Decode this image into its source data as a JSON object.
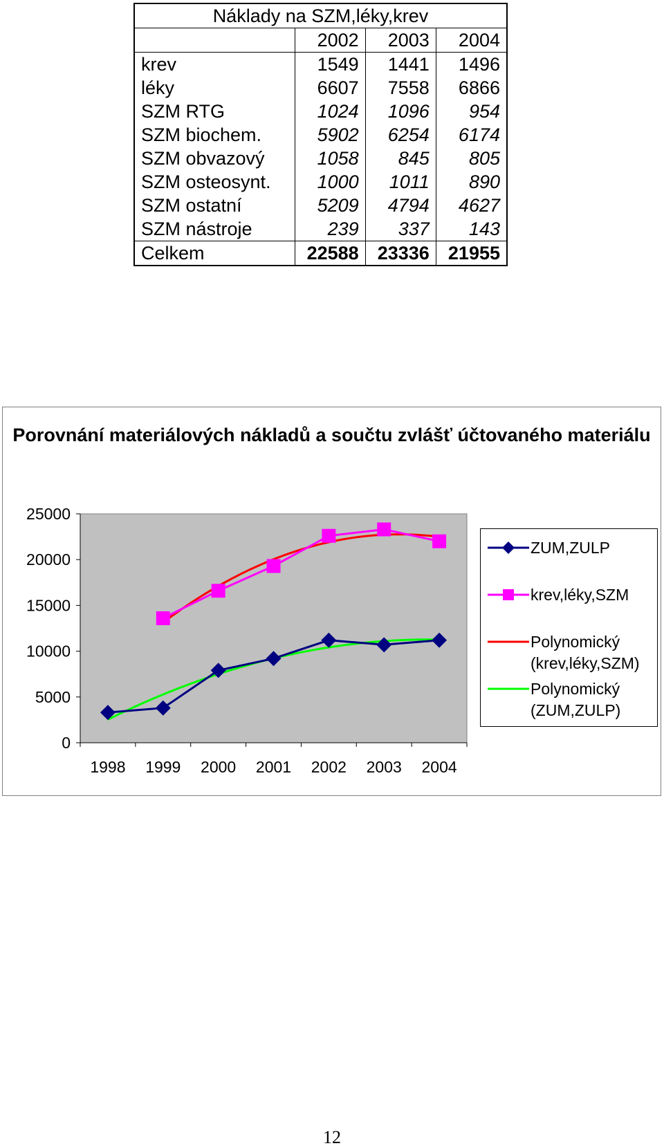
{
  "table": {
    "title": "Náklady na SZM,léky,krev",
    "years": [
      "2002",
      "2003",
      "2004"
    ],
    "rows": [
      {
        "label": "krev",
        "values": [
          "1549",
          "1441",
          "1496"
        ]
      },
      {
        "label": "léky",
        "values": [
          "6607",
          "7558",
          "6866"
        ]
      },
      {
        "label": "SZM RTG",
        "values": [
          "1024",
          "1096",
          "954"
        ]
      },
      {
        "label": "SZM biochem.",
        "values": [
          "5902",
          "6254",
          "6174"
        ]
      },
      {
        "label": "SZM obvazový",
        "values": [
          "1058",
          "845",
          "805"
        ]
      },
      {
        "label": "SZM osteosynt.",
        "values": [
          "1000",
          "1011",
          "890"
        ]
      },
      {
        "label": "SZM ostatní",
        "values": [
          "5209",
          "4794",
          "4627"
        ]
      },
      {
        "label": "SZM nástroje",
        "values": [
          "239",
          "337",
          "143"
        ]
      }
    ],
    "total": {
      "label": "Celkem",
      "values": [
        "22588",
        "23336",
        "21955"
      ]
    }
  },
  "chart_data": {
    "type": "line",
    "title": "Porovnání materiálových nákladů a součtu zvlášť účtovaného materiálu",
    "categories": [
      "1998",
      "1999",
      "2000",
      "2001",
      "2002",
      "2003",
      "2004"
    ],
    "ylim": [
      0,
      25000
    ],
    "y_ticks": [
      "0",
      "5000",
      "10000",
      "15000",
      "20000",
      "25000"
    ],
    "grid": false,
    "plot_background": "#c0c0c0",
    "legend_position": "right",
    "series": [
      {
        "name": "ZUM,ZULP",
        "marker": "diamond",
        "color": "#000080",
        "values": [
          3300,
          3800,
          7900,
          9200,
          11200,
          10700,
          11200
        ]
      },
      {
        "name": "krev,léky,SZM",
        "marker": "square",
        "color": "#ff00ff",
        "values": [
          null,
          13600,
          16600,
          19300,
          22600,
          23300,
          22000
        ]
      },
      {
        "name": "Polynomický\n(krev,léky,SZM)",
        "marker": "none",
        "color": "#ff0000",
        "trend_of": "krev,léky,SZM"
      },
      {
        "name": "Polynomický\n(ZUM,ZULP)",
        "marker": "none",
        "color": "#00ff00",
        "trend_of": "ZUM,ZULP"
      }
    ]
  },
  "page_number": "12"
}
